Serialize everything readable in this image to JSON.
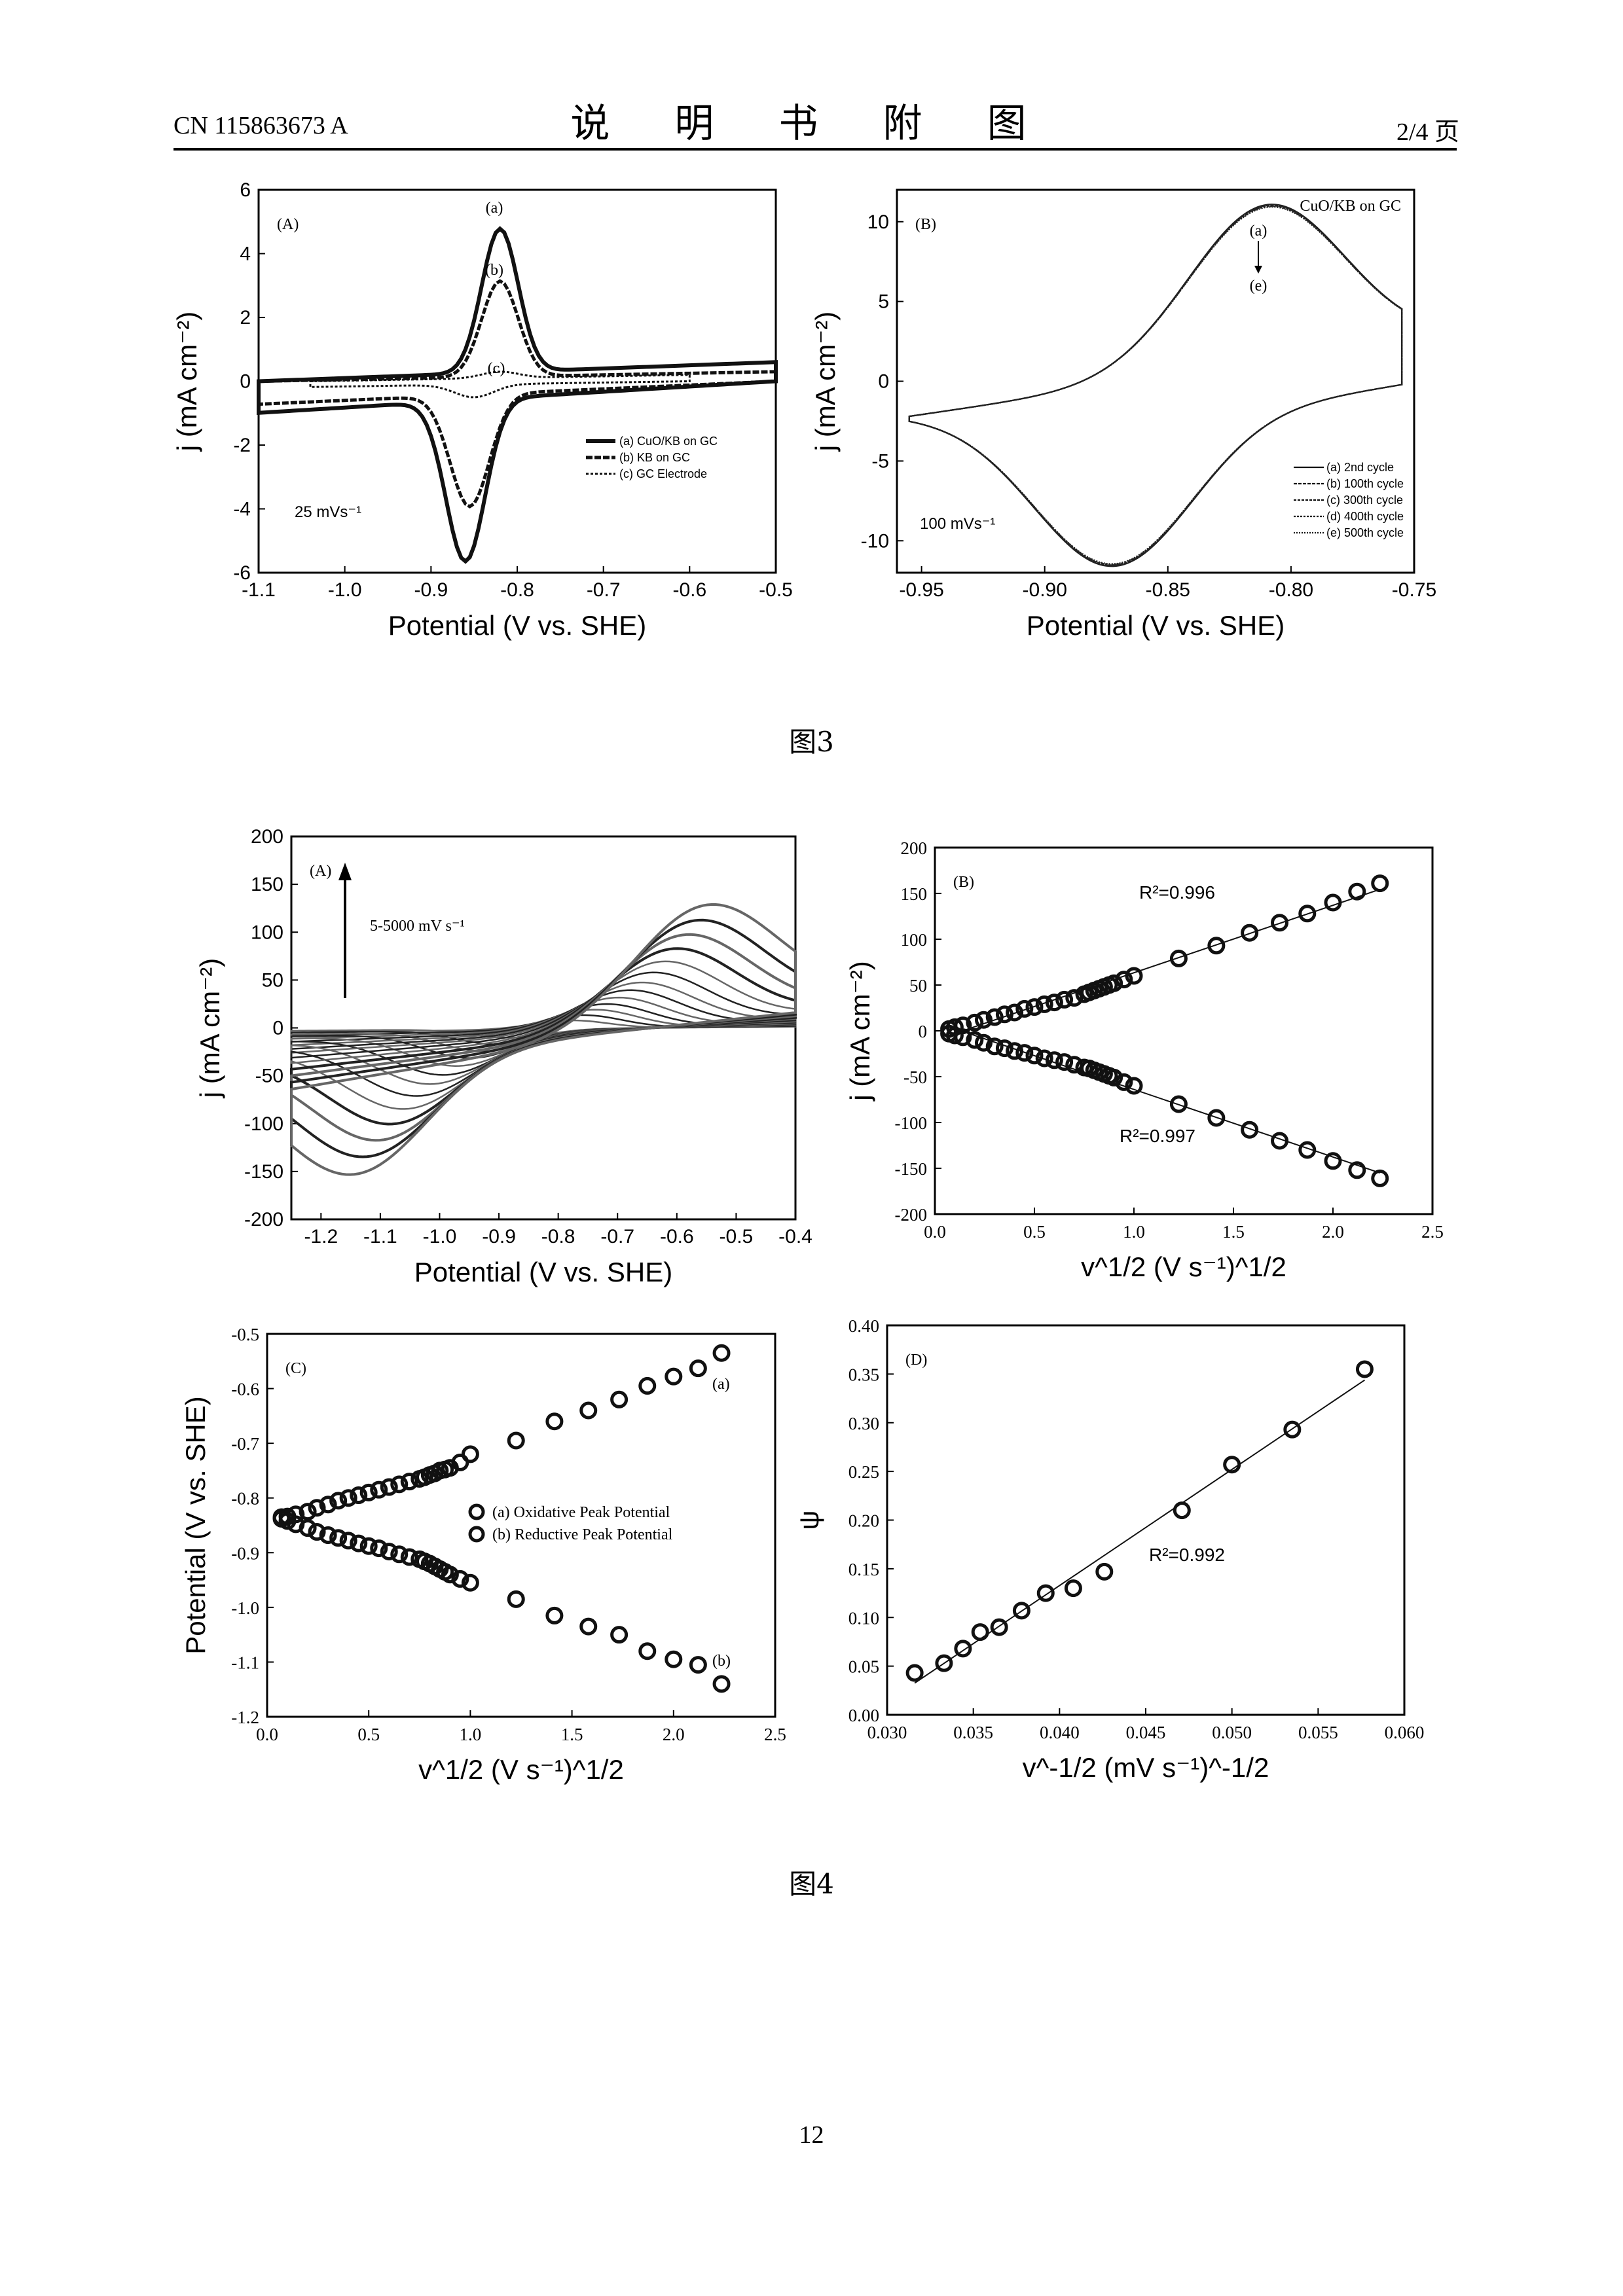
{
  "header": {
    "doc_number": "CN 115863673 A",
    "title": "说 明 书 附 图",
    "page_of": "2/4 页"
  },
  "captions": {
    "fig3": "图3",
    "fig4": "图4"
  },
  "page_number": "12",
  "chart_data": [
    {
      "id": "fig3A",
      "type": "line",
      "panel_label": "(A)",
      "xlabel": "Potential (V vs. SHE)",
      "ylabel": "j (mA cm⁻²)",
      "xlim": [
        -1.1,
        -0.5
      ],
      "ylim": [
        -6,
        6
      ],
      "xticks": [
        "-1.1",
        "-1.0",
        "-0.9",
        "-0.8",
        "-0.7",
        "-0.6",
        "-0.5"
      ],
      "yticks": [
        "6",
        "4",
        "2",
        "0",
        "-2",
        "-4",
        "-6"
      ],
      "annotation": "25 mVs⁻¹",
      "curve_labels": [
        "(a)",
        "(b)",
        "(c)"
      ],
      "legend": [
        "(a) CuO/KB on GC",
        "(b) KB on GC",
        "(c) GC Electrode"
      ],
      "series": [
        {
          "name": "(a) CuO/KB on GC",
          "ox_peak": [
            -0.82,
            5.1
          ],
          "red_peak": [
            -0.86,
            -5.6
          ],
          "baseline_top": 0.6,
          "baseline_bottom": -1.1
        },
        {
          "name": "(b) KB on GC",
          "ox_peak": [
            -0.82,
            3.3
          ],
          "red_peak": [
            -0.855,
            -3.9
          ],
          "baseline_top": 0.3,
          "baseline_bottom": -0.8
        },
        {
          "name": "(c) GC Electrode",
          "ox_peak": [
            -0.82,
            0.4
          ],
          "red_peak": [
            -0.85,
            -0.5
          ],
          "baseline_top": 0.2,
          "baseline_bottom": -0.2
        }
      ]
    },
    {
      "id": "fig3B",
      "type": "line",
      "panel_label": "(B)",
      "xlabel": "Potential (V vs. SHE)",
      "ylabel": "j (mA cm⁻²)",
      "xlim": [
        -0.96,
        -0.75
      ],
      "ylim": [
        -12,
        12
      ],
      "xticks": [
        "-0.95",
        "-0.90",
        "-0.85",
        "-0.80",
        "-0.75"
      ],
      "yticks": [
        "10",
        "5",
        "0",
        "-5",
        "-10"
      ],
      "title_note": "CuO/KB on GC",
      "annotation": "100 mVs⁻¹",
      "arrow_labels": [
        "(a)",
        "(e)"
      ],
      "legend": [
        "(a) 2nd cycle",
        "(b) 100th cycle",
        "(c) 300th cycle",
        "(d) 400th cycle",
        "(e) 500th cycle"
      ],
      "ox_peak": [
        -0.81,
        10.6
      ],
      "red_peak": [
        -0.872,
        -11.2
      ]
    },
    {
      "id": "fig4A",
      "type": "line",
      "panel_label": "(A)",
      "xlabel": "Potential (V vs. SHE)",
      "ylabel": "j (mA cm⁻²)",
      "xlim": [
        -1.25,
        -0.4
      ],
      "ylim": [
        -200,
        200
      ],
      "xticks": [
        "-1.2",
        "-1.1",
        "-1.0",
        "-0.9",
        "-0.8",
        "-0.7",
        "-0.6",
        "-0.5",
        "-0.4"
      ],
      "yticks": [
        "200",
        "150",
        "100",
        "50",
        "0",
        "-50",
        "-100",
        "-150",
        "-200"
      ],
      "annotation": "5-5000 mV s⁻¹",
      "scan_amplitudes": [
        12,
        20,
        28,
        36,
        45,
        55,
        65,
        78,
        92,
        108,
        125,
        142,
        160
      ]
    },
    {
      "id": "fig4B",
      "type": "scatter",
      "panel_label": "(B)",
      "xlabel": "v^1/2 (V s⁻¹)^1/2",
      "ylabel": "j (mA cm⁻²)",
      "xlim": [
        0,
        2.5
      ],
      "ylim": [
        -200,
        200
      ],
      "xticks": [
        "0.0",
        "0.5",
        "1.0",
        "1.5",
        "2.0",
        "2.5"
      ],
      "yticks": [
        "200",
        "150",
        "100",
        "50",
        "0",
        "-50",
        "-100",
        "-150",
        "-200"
      ],
      "r2_labels": [
        "R²=0.996",
        "R²=0.997"
      ],
      "x": [
        0.071,
        0.1,
        0.141,
        0.2,
        0.245,
        0.3,
        0.35,
        0.4,
        0.45,
        0.5,
        0.55,
        0.6,
        0.65,
        0.7,
        0.75,
        0.775,
        0.8,
        0.825,
        0.85,
        0.875,
        0.9,
        0.95,
        1.0,
        1.225,
        1.414,
        1.581,
        1.732,
        1.871,
        2.0,
        2.121,
        2.236
      ],
      "series": [
        {
          "name": "oxidative",
          "values": [
            2,
            4,
            6,
            9,
            12,
            15,
            18,
            20,
            24,
            26,
            29,
            31,
            34,
            36,
            40,
            42,
            44,
            46,
            48,
            50,
            52,
            56,
            60,
            79,
            93,
            107,
            118,
            128,
            140,
            152,
            161
          ]
        },
        {
          "name": "reductive",
          "values": [
            -3,
            -5,
            -7,
            -10,
            -13,
            -17,
            -19,
            -22,
            -24,
            -27,
            -30,
            -32,
            -34,
            -37,
            -40,
            -41,
            -43,
            -45,
            -47,
            -49,
            -51,
            -56,
            -60,
            -80,
            -95,
            -108,
            -120,
            -130,
            -142,
            -152,
            -161
          ]
        }
      ]
    },
    {
      "id": "fig4C",
      "type": "scatter",
      "panel_label": "(C)",
      "xlabel": "v^1/2 (V s⁻¹)^1/2",
      "ylabel": "Potential (V vs. SHE)",
      "xlim": [
        0,
        2.5
      ],
      "ylim": [
        -1.2,
        -0.5
      ],
      "xticks": [
        "0.0",
        "0.5",
        "1.0",
        "1.5",
        "2.0",
        "2.5"
      ],
      "yticks": [
        "-0.5",
        "-0.6",
        "-0.7",
        "-0.8",
        "-0.9",
        "-1.0",
        "-1.1",
        "-1.2"
      ],
      "curve_labels": [
        "(a)",
        "(b)"
      ],
      "legend": [
        "(a) Oxidative Peak Potential",
        "(b) Reductive Peak Potential"
      ],
      "x": [
        0.071,
        0.1,
        0.141,
        0.2,
        0.245,
        0.3,
        0.35,
        0.4,
        0.45,
        0.5,
        0.55,
        0.6,
        0.65,
        0.7,
        0.75,
        0.775,
        0.8,
        0.825,
        0.85,
        0.875,
        0.9,
        0.95,
        1.0,
        1.225,
        1.414,
        1.581,
        1.732,
        1.871,
        2.0,
        2.121,
        2.236
      ],
      "series": [
        {
          "name": "(a) Oxidative Peak Potential",
          "values": [
            -0.835,
            -0.834,
            -0.83,
            -0.825,
            -0.818,
            -0.812,
            -0.805,
            -0.8,
            -0.795,
            -0.79,
            -0.785,
            -0.78,
            -0.775,
            -0.77,
            -0.765,
            -0.762,
            -0.758,
            -0.755,
            -0.75,
            -0.748,
            -0.745,
            -0.735,
            -0.72,
            -0.695,
            -0.66,
            -0.64,
            -0.62,
            -0.595,
            -0.578,
            -0.563,
            -0.535
          ]
        },
        {
          "name": "(b) Reductive Peak Potential",
          "values": [
            -0.838,
            -0.842,
            -0.848,
            -0.855,
            -0.862,
            -0.868,
            -0.873,
            -0.878,
            -0.883,
            -0.888,
            -0.892,
            -0.898,
            -0.903,
            -0.908,
            -0.912,
            -0.916,
            -0.92,
            -0.925,
            -0.93,
            -0.935,
            -0.94,
            -0.948,
            -0.955,
            -0.985,
            -1.015,
            -1.035,
            -1.05,
            -1.08,
            -1.095,
            -1.105,
            -1.14
          ]
        }
      ]
    },
    {
      "id": "fig4D",
      "type": "scatter",
      "panel_label": "(D)",
      "xlabel": "v^-1/2 (mV s⁻¹)^-1/2",
      "ylabel": "ψ",
      "xlim": [
        0.03,
        0.06
      ],
      "ylim": [
        0,
        0.4
      ],
      "xticks": [
        "0.030",
        "0.035",
        "0.040",
        "0.045",
        "0.050",
        "0.055",
        "0.060"
      ],
      "yticks": [
        "0.40",
        "0.35",
        "0.30",
        "0.25",
        "0.20",
        "0.15",
        "0.10",
        "0.05",
        "0.00"
      ],
      "r2_label": "R²=0.992",
      "x": [
        0.0316,
        0.0333,
        0.0344,
        0.0354,
        0.0365,
        0.0378,
        0.0392,
        0.0408,
        0.0426,
        0.0471,
        0.05,
        0.0535,
        0.0577
      ],
      "values": [
        0.043,
        0.053,
        0.068,
        0.085,
        0.09,
        0.107,
        0.125,
        0.13,
        0.147,
        0.21,
        0.257,
        0.293,
        0.355
      ]
    }
  ]
}
